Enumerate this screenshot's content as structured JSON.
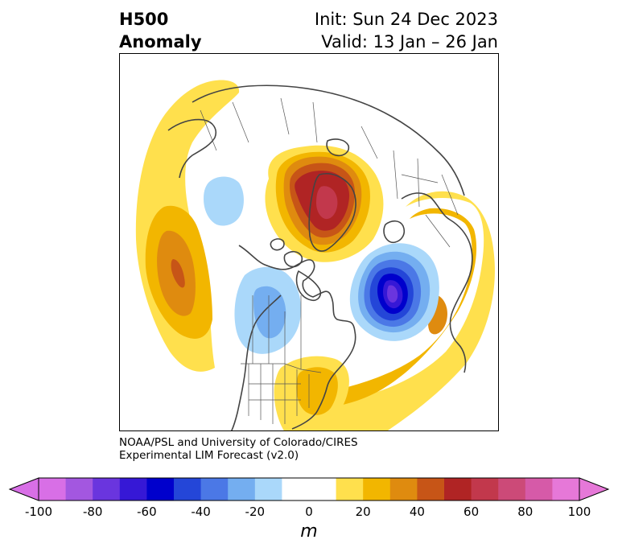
{
  "header": {
    "title_line1": "H500",
    "title_line2": "Anomaly",
    "init_text": "Init: Sun 24 Dec 2023",
    "valid_text": "Valid: 13 Jan – 26 Jan"
  },
  "credit": {
    "line1": "NOAA/PSL and University of Colorado/CIRES",
    "line2": "Experimental LIM Forecast (v2.0)"
  },
  "colorbar": {
    "unit": "m",
    "ticks": [
      "-100",
      "-80",
      "-60",
      "-40",
      "-20",
      "0",
      "20",
      "40",
      "60",
      "80",
      "100"
    ],
    "colors": [
      "#d86fe6",
      "#a357e0",
      "#6a35de",
      "#3618d6",
      "#0000cc",
      "#2446d8",
      "#4b78e6",
      "#74aef0",
      "#aad8fa",
      "#ffffff",
      "#ffffff",
      "#ffe04d",
      "#f2b600",
      "#df8b0f",
      "#c75517",
      "#b02424",
      "#c2384c",
      "#cc4a78",
      "#d65aa8",
      "#e678d8"
    ],
    "under_color": "#d86fe6",
    "over_color": "#e678d8"
  },
  "map": {
    "projection": "polar stereographic, North Pole",
    "field": "500 hPa geopotential height anomaly",
    "anomalies": [
      {
        "region": "North Pacific",
        "sign": "positive",
        "peak": "50 to 60"
      },
      {
        "region": "Arctic / Greenland",
        "sign": "positive",
        "peak": "60 to 70"
      },
      {
        "region": "North Atlantic / Labrador Sea",
        "sign": "negative",
        "peak": "-70 to -80"
      },
      {
        "region": "Western Canada",
        "sign": "negative",
        "peak": "-20 to -30"
      },
      {
        "region": "Eastern Siberia",
        "sign": "negative",
        "peak": "-10 to -20"
      },
      {
        "region": "Southeastern US / Western Atlantic",
        "sign": "positive",
        "peak": "20 to 30"
      },
      {
        "region": "Europe / Eurasia",
        "sign": "positive",
        "peak": "20 to 30"
      }
    ]
  }
}
